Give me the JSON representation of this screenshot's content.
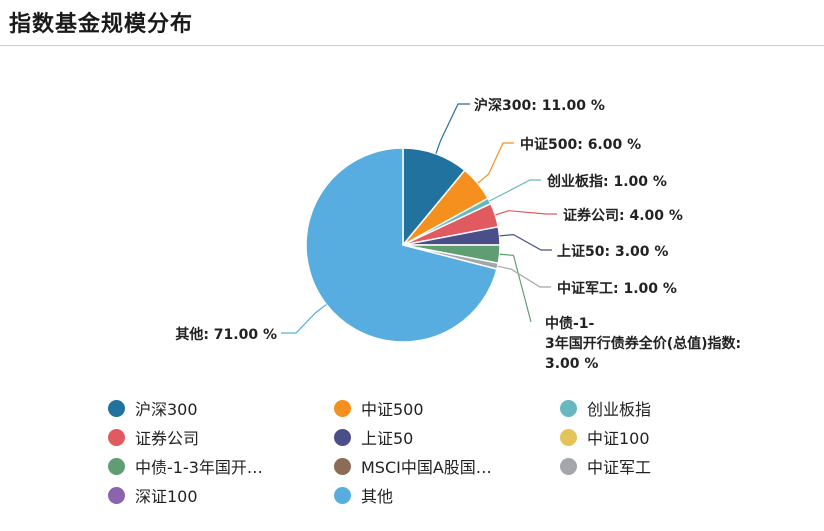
{
  "header": {
    "title": "指数基金规模分布"
  },
  "chart_data": {
    "type": "pie",
    "title": "指数基金规模分布",
    "unit": "%",
    "slices": [
      {
        "name": "沪深300",
        "value": 11.0,
        "color": "#21729e",
        "label_lines": [
          "沪深300: 11.00 %"
        ]
      },
      {
        "name": "中证500",
        "value": 6.0,
        "color": "#f5901e",
        "label_lines": [
          "中证500: 6.00 %"
        ]
      },
      {
        "name": "创业板指",
        "value": 1.0,
        "color": "#67b8bf",
        "label_lines": [
          "创业板指: 1.00 %"
        ]
      },
      {
        "name": "证券公司",
        "value": 4.0,
        "color": "#e05a5f",
        "label_lines": [
          "证券公司: 4.00 %"
        ]
      },
      {
        "name": "上证50",
        "value": 3.0,
        "color": "#4a4f8a",
        "label_lines": [
          "上证50: 3.00 %"
        ]
      },
      {
        "name": "中证100",
        "value": 0.0,
        "color": "#e3c35a",
        "label_lines": []
      },
      {
        "name": "中债-1-3年国开行债券全价(总值)指数",
        "value": 3.0,
        "color": "#5e9e72",
        "label_lines": [
          "中债-1-",
          "3年国开行债券全价(总值)指数:",
          "3.00 %"
        ]
      },
      {
        "name": "MSCI中国A股国际通实时指数",
        "value": 0.0,
        "color": "#8d6c56",
        "label_lines": []
      },
      {
        "name": "中证军工",
        "value": 1.0,
        "color": "#a3a6ab",
        "label_lines": [
          "中证军工: 1.00 %"
        ]
      },
      {
        "name": "深证100",
        "value": 0.0,
        "color": "#8c63ad",
        "label_lines": []
      },
      {
        "name": "其他",
        "value": 71.0,
        "color": "#58ade0",
        "label_lines": [
          "其他: 71.00 %"
        ]
      }
    ],
    "legend": {
      "placement": "bottom",
      "items": [
        {
          "label": "沪深300",
          "color": "#21729e"
        },
        {
          "label": "中证500",
          "color": "#f5901e"
        },
        {
          "label": "创业板指",
          "color": "#67b8bf"
        },
        {
          "label": "证券公司",
          "color": "#e05a5f"
        },
        {
          "label": "上证50",
          "color": "#4a4f8a"
        },
        {
          "label": "中证100",
          "color": "#e3c35a"
        },
        {
          "label": "中债-1-3年国开…",
          "color": "#5e9e72"
        },
        {
          "label": "MSCI中国A股国…",
          "color": "#8d6c56"
        },
        {
          "label": "中证军工",
          "color": "#a3a6ab"
        },
        {
          "label": "深证100",
          "color": "#8c63ad"
        },
        {
          "label": "其他",
          "color": "#58ade0"
        }
      ]
    }
  }
}
